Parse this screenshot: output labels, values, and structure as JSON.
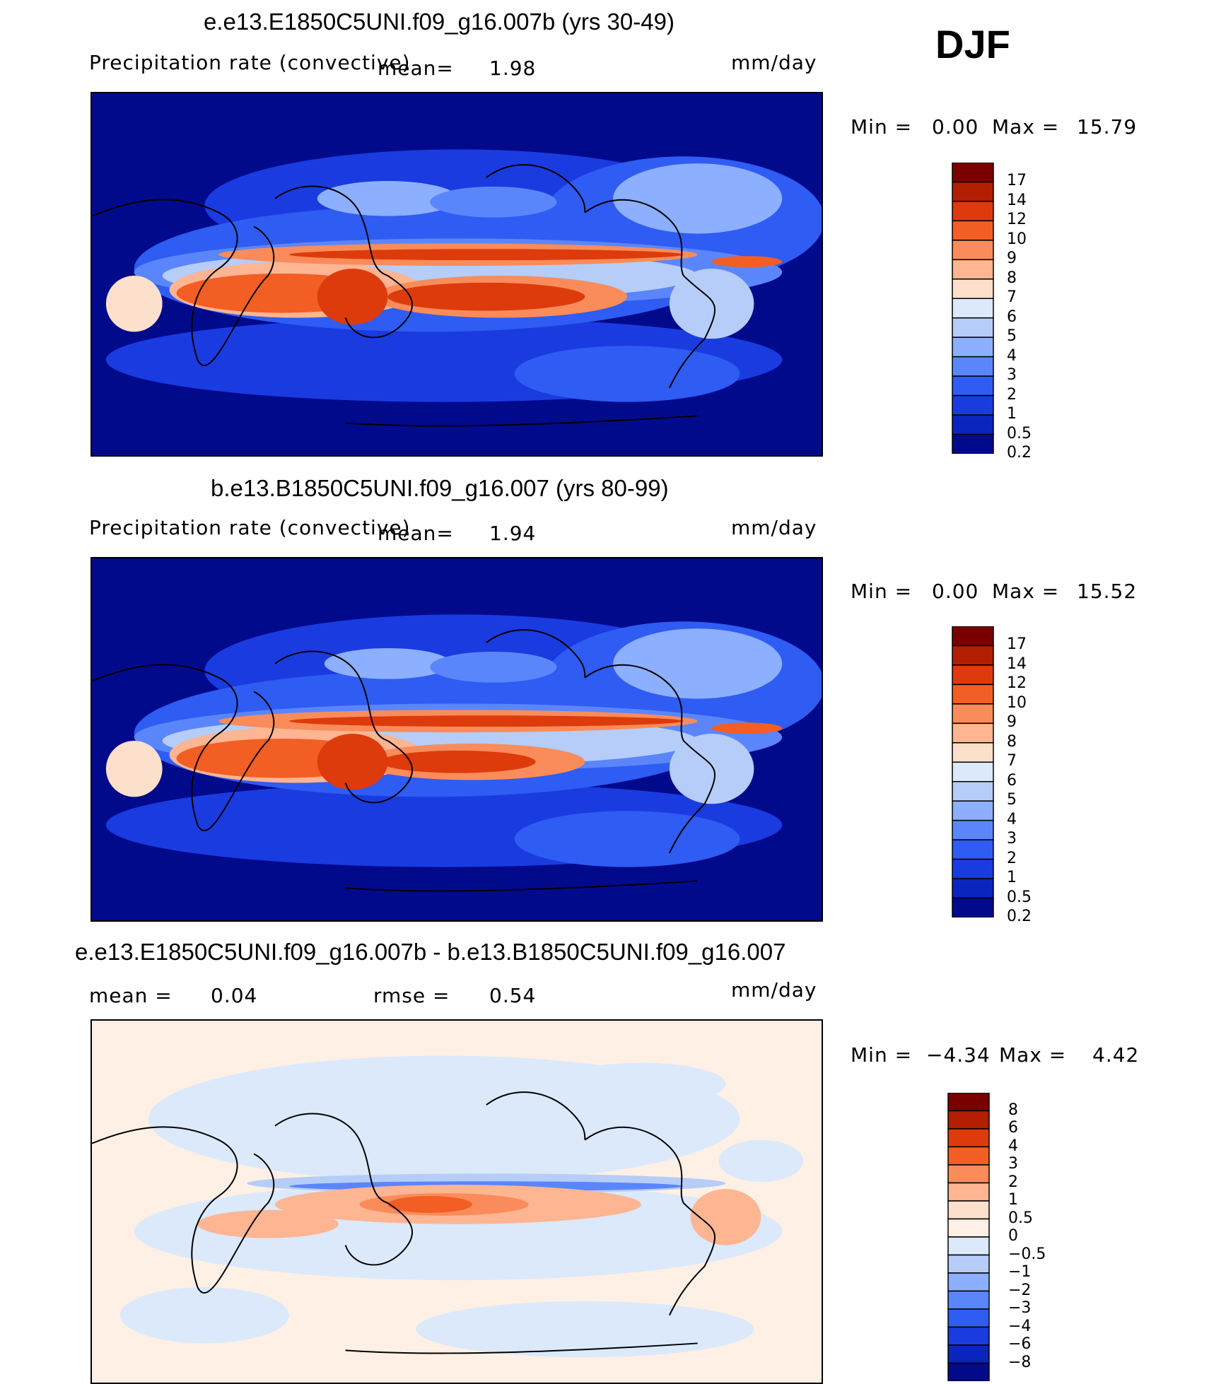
{
  "season": "DJF",
  "panels": [
    {
      "title": "e.e13.E1850C5UNI.f09_g16.007b (yrs 30-49)",
      "variable": "Precipitation rate (convective)",
      "mean_label": "mean=",
      "mean_value": "1.98",
      "units": "mm/day",
      "min_label": "Min =",
      "min_value": "0.00",
      "max_label": "Max =",
      "max_value": "15.79",
      "colorbar_ticks": [
        "17",
        "14",
        "12",
        "10",
        "9",
        "8",
        "7",
        "6",
        "5",
        "4",
        "3",
        "2",
        "1",
        "0.5",
        "0.2"
      ],
      "colorbar_colors": [
        "#7a0000",
        "#b31d00",
        "#dd3b0c",
        "#f25e24",
        "#f98c5a",
        "#fdb592",
        "#fde0cc",
        "#dbe9fb",
        "#b5cdf8",
        "#8cafff",
        "#5b86fb",
        "#2f5cf2",
        "#1a3be0",
        "#0a25bd",
        "#020a8c"
      ]
    },
    {
      "title": "b.e13.B1850C5UNI.f09_g16.007 (yrs 80-99)",
      "variable": "Precipitation rate (convective)",
      "mean_label": "mean=",
      "mean_value": "1.94",
      "units": "mm/day",
      "min_label": "Min =",
      "min_value": "0.00",
      "max_label": "Max =",
      "max_value": "15.52",
      "colorbar_ticks": [
        "17",
        "14",
        "12",
        "10",
        "9",
        "8",
        "7",
        "6",
        "5",
        "4",
        "3",
        "2",
        "1",
        "0.5",
        "0.2"
      ],
      "colorbar_colors": [
        "#7a0000",
        "#b31d00",
        "#dd3b0c",
        "#f25e24",
        "#f98c5a",
        "#fdb592",
        "#fde0cc",
        "#dbe9fb",
        "#b5cdf8",
        "#8cafff",
        "#5b86fb",
        "#2f5cf2",
        "#1a3be0",
        "#0a25bd",
        "#020a8c"
      ]
    },
    {
      "title": "e.e13.E1850C5UNI.f09_g16.007b - b.e13.B1850C5UNI.f09_g16.007",
      "mean_label": "mean =",
      "mean_value": "0.04",
      "rmse_label": "rmse =",
      "rmse_value": "0.54",
      "units": "mm/day",
      "min_label": "Min =",
      "min_value": "−4.34",
      "max_label": "Max =",
      "max_value": "4.42",
      "colorbar_ticks": [
        "8",
        "6",
        "4",
        "3",
        "2",
        "1",
        "0.5",
        "0",
        "−0.5",
        "−1",
        "−2",
        "−3",
        "−4",
        "−6",
        "−8"
      ],
      "colorbar_colors": [
        "#7a0000",
        "#b31d00",
        "#dd3b0c",
        "#f25e24",
        "#f98c5a",
        "#fdb592",
        "#fde0cc",
        "#fef0e4",
        "#dbe9fb",
        "#b5cdf8",
        "#8cafff",
        "#5b86fb",
        "#2f5cf2",
        "#1a3be0",
        "#0a25bd",
        "#020a8c"
      ]
    }
  ]
}
